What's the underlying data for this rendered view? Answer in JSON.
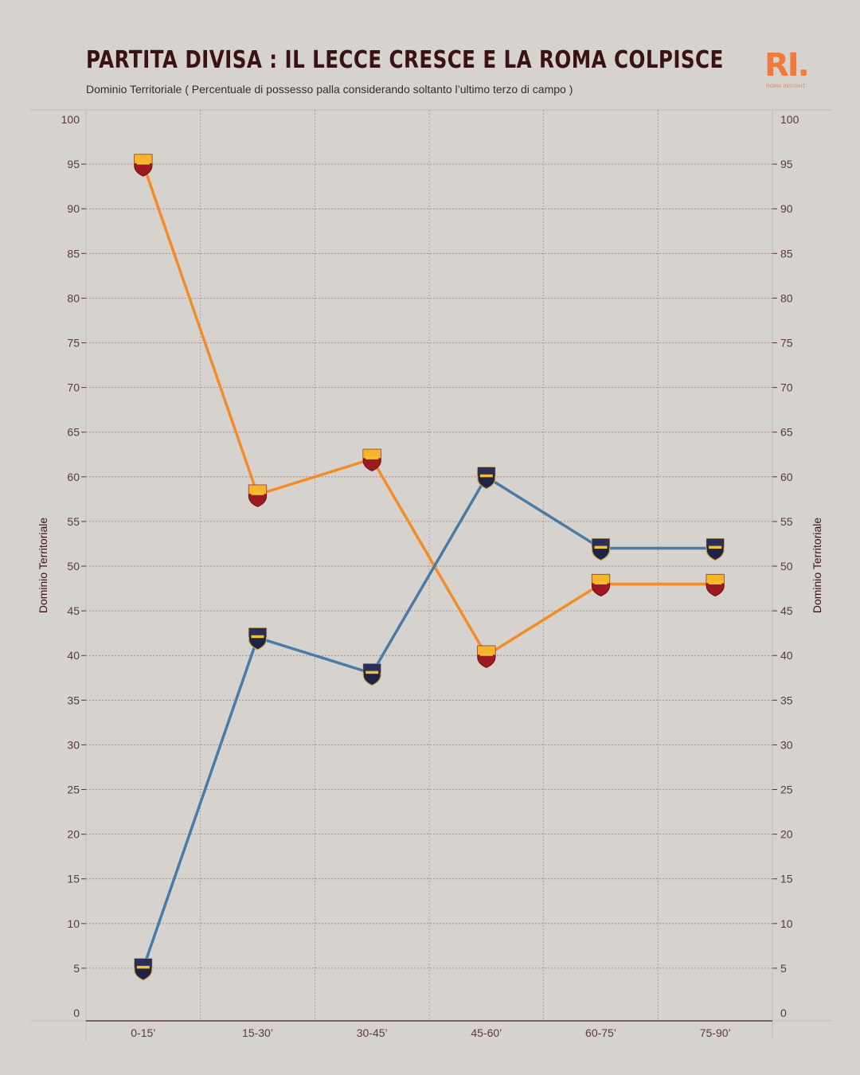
{
  "header": {
    "title": "PARTITA DIVISA : IL LECCE CRESCE E LA ROMA COLPISCE",
    "subtitle": "Dominio Territoriale ( Percentuale di possesso palla considerando soltanto l’ultimo terzo di campo )",
    "logo_text": "RI.",
    "logo_subtext": "ROMA INSIGHT"
  },
  "chart_data": {
    "type": "line",
    "categories": [
      "0-15’",
      "15-30’",
      "30-45’",
      "45-60’",
      "60-75’",
      "75-90’"
    ],
    "series": [
      {
        "name": "",
        "team_marker": "roma-crest-icon",
        "color": "#f28c28",
        "values": [
          95,
          58,
          62,
          40,
          48,
          48
        ]
      },
      {
        "name": "",
        "team_marker": "lecce-crest-icon",
        "color": "#4a7aa6",
        "values": [
          5,
          42,
          38,
          60,
          52,
          52
        ]
      }
    ],
    "ylim": [
      0,
      100
    ],
    "yticks": [
      0,
      5,
      10,
      15,
      20,
      25,
      30,
      35,
      40,
      45,
      50,
      55,
      60,
      65,
      70,
      75,
      80,
      85,
      90,
      95,
      100
    ],
    "ylabel_left": "Dominio Territoriale",
    "ylabel_right": "Dominio Territoriale",
    "grid": true,
    "colors": {
      "background": "#d6d3cf",
      "grid": "#8a5a5e",
      "axis": "#5a3a3e"
    }
  }
}
